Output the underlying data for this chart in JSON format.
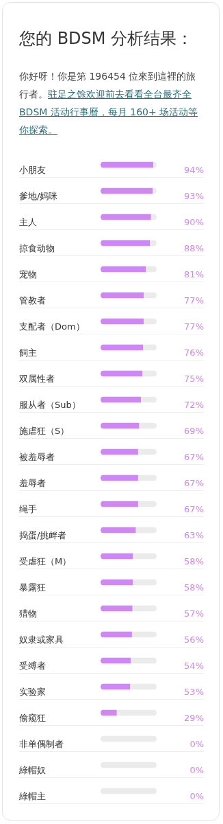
{
  "chart_data": {
    "type": "bar",
    "orientation": "horizontal",
    "title": "您的 BDSM 分析结果：",
    "subtitle": "你好呀！你是第 196454 位來到這裡的旅行者。",
    "annotations": [
      "驻足之馀欢迎前去看看全台最齐全 BDSM 活动行事曆，每月 160+ 场活动等你探索。"
    ],
    "categories": [
      "小朋友",
      "爹地/妈咪",
      "主人",
      "掠食动物",
      "宠物",
      "管教者",
      "支配者（Dom）",
      "飼主",
      "双属性者",
      "服从者（Sub）",
      "施虐狂（S）",
      "被羞辱者",
      "羞辱者",
      "绳手",
      "捣蛋/挑衅者",
      "受虐狂（M）",
      "暴露狂",
      "猎物",
      "奴隶或家具",
      "受缚者",
      "实验家",
      "偷窥狂",
      "非单偶制者",
      "綠帽奴",
      "綠帽主"
    ],
    "xlim": [
      0,
      100
    ],
    "stacked": true,
    "series": [
      {
        "color": "#cf87f3",
        "values": [
          94,
          93,
          90,
          88,
          81,
          77,
          77,
          76,
          75,
          72,
          69,
          67,
          67,
          67,
          63,
          58,
          58,
          57,
          56,
          54,
          53,
          29,
          0,
          0,
          0
        ],
        "value_labels": [
          "94%",
          "93%",
          "90%",
          "88%",
          "81%",
          "77%",
          "77%",
          "76%",
          "75%",
          "72%",
          "69%",
          "67%",
          "67%",
          "67%",
          "63%",
          "58%",
          "58%",
          "57%",
          "56%",
          "54%",
          "53%",
          "29%",
          "0%",
          "0%",
          "0%"
        ]
      },
      {
        "color": "#ebebeb",
        "values": [
          6,
          7,
          10,
          12,
          19,
          23,
          23,
          24,
          25,
          28,
          31,
          33,
          33,
          33,
          37,
          42,
          42,
          43,
          44,
          46,
          47,
          71,
          100,
          100,
          100
        ]
      }
    ]
  }
}
